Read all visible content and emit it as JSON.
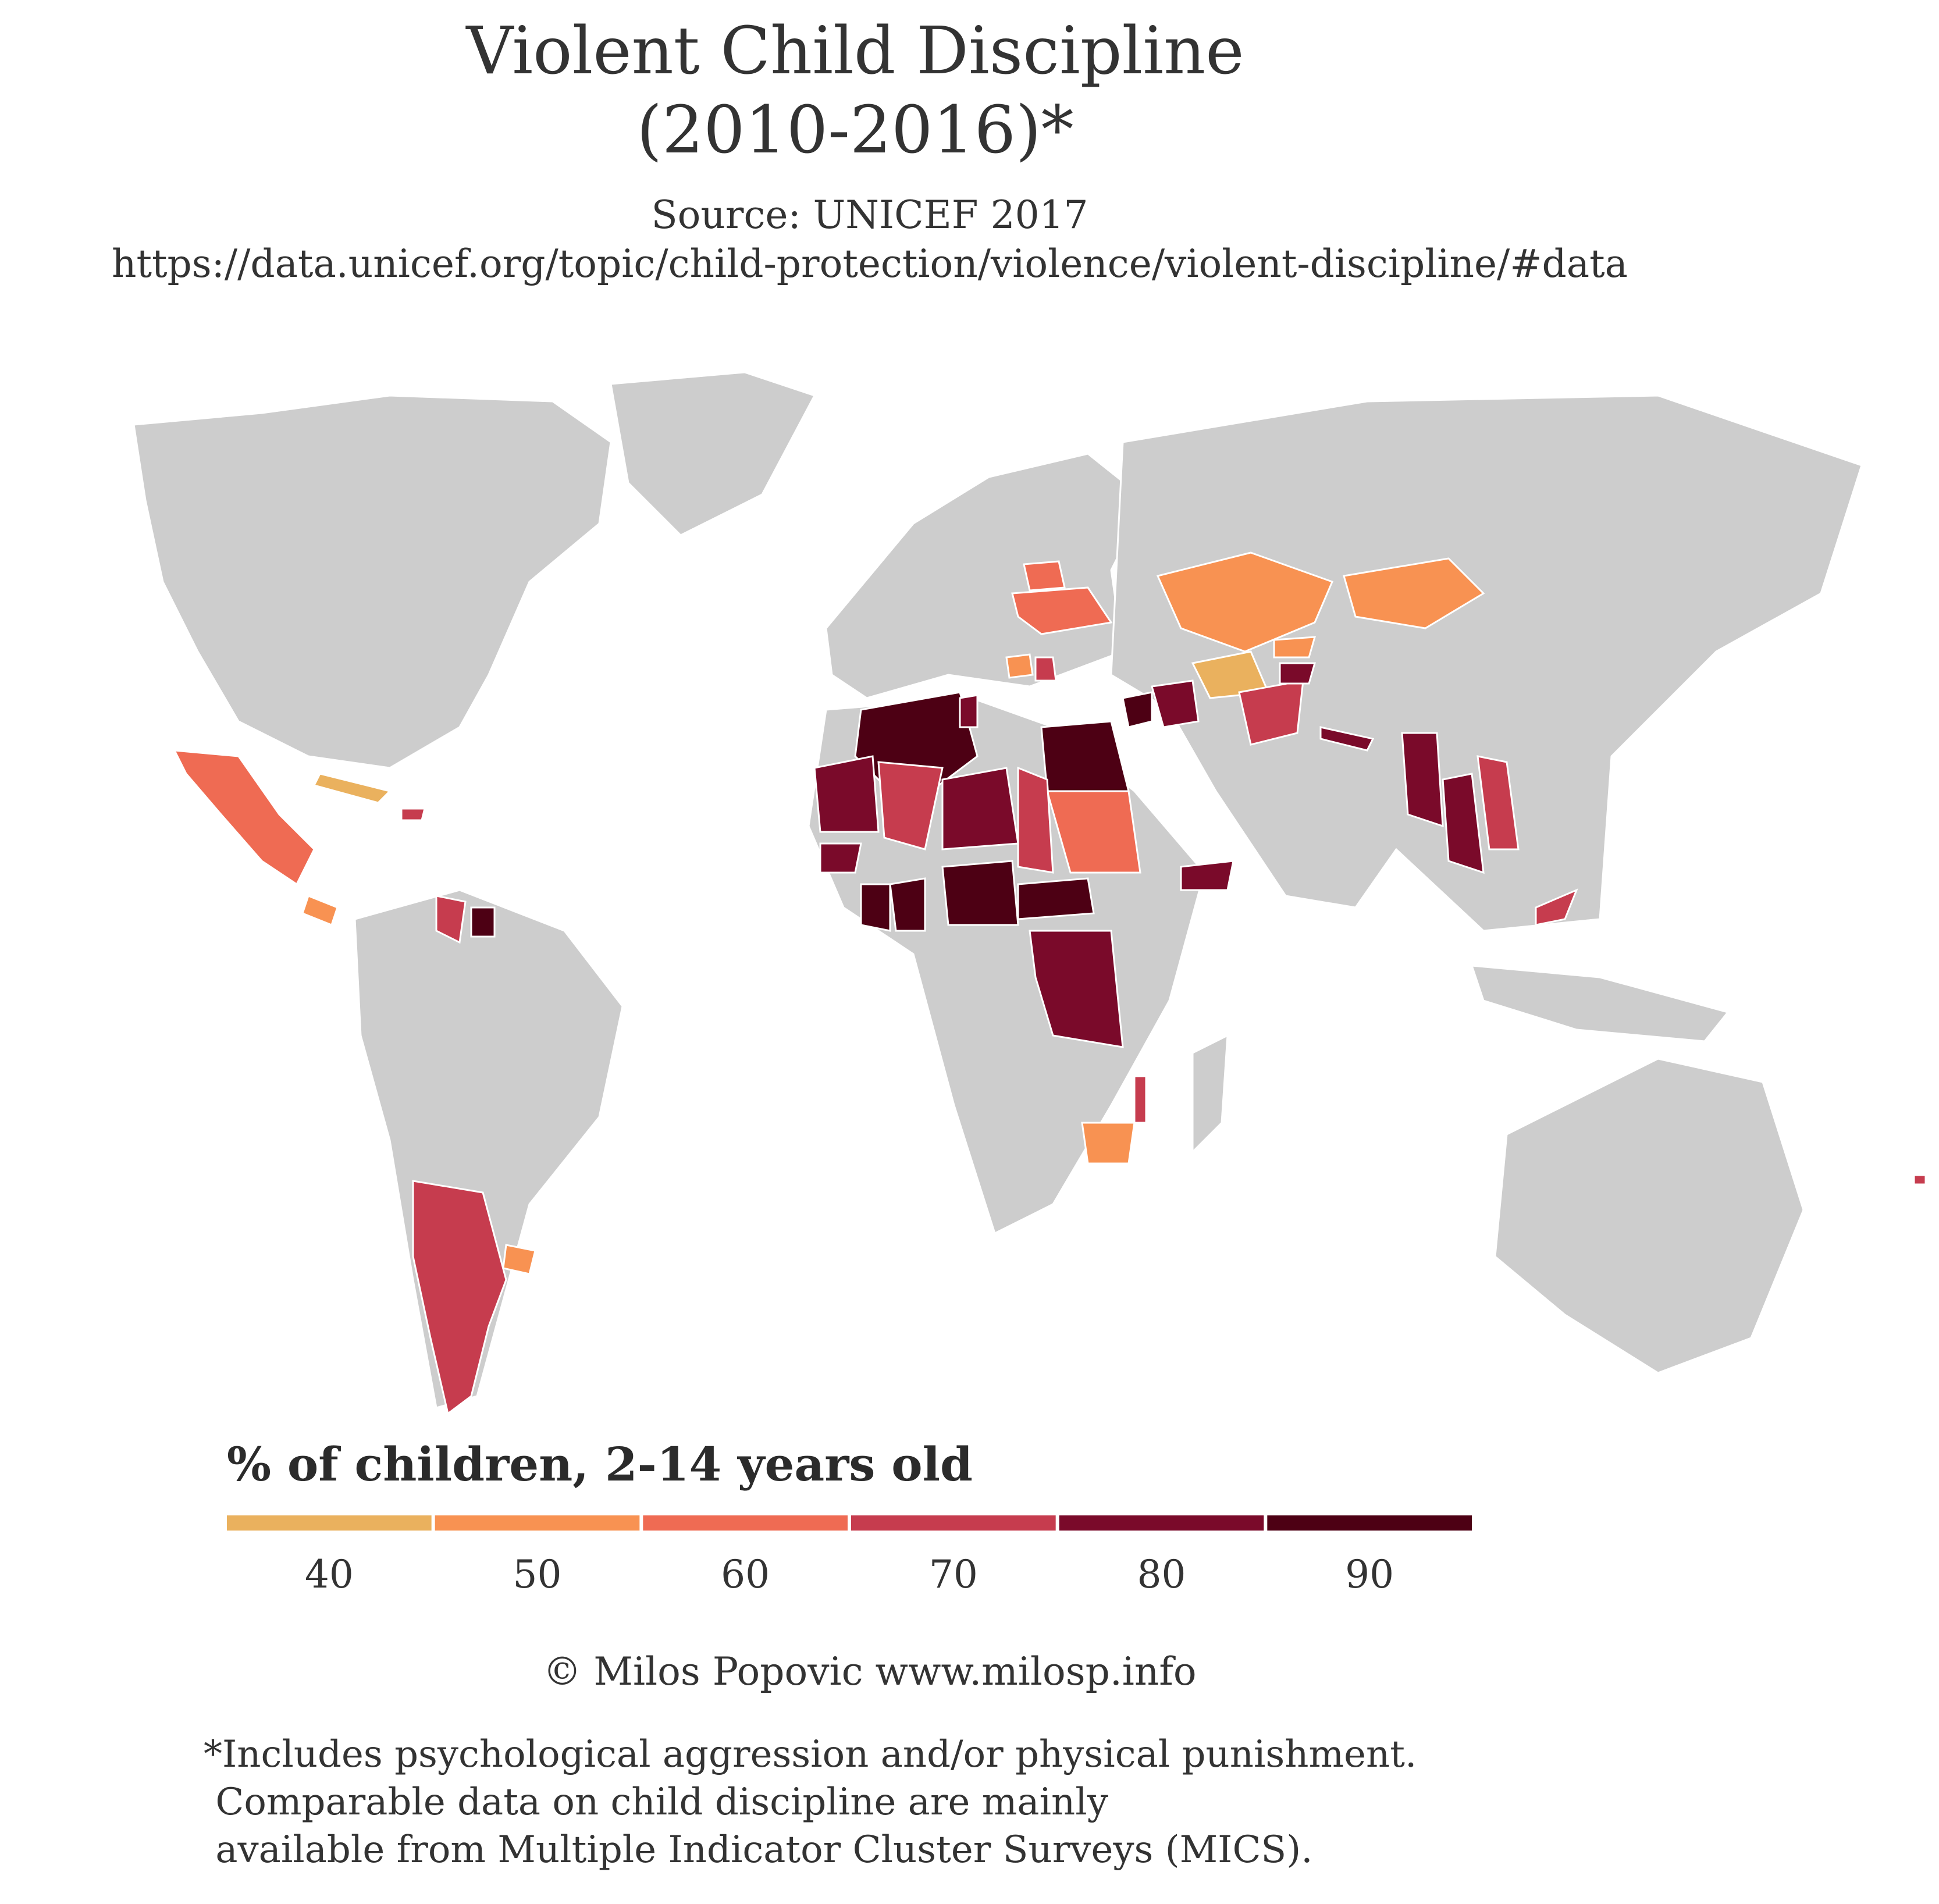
{
  "title_line1": "Violent Child Discipline",
  "title_line2": "(2010-2016)*",
  "source_line1": "Source: UNICEF 2017",
  "source_line2": "https://data.unicef.org/topic/child-protection/violence/violent-discipline/#data",
  "legend": {
    "title": "% of children, 2-14 years old",
    "bins": [
      {
        "label": "40",
        "color": "#EAB15E"
      },
      {
        "label": "50",
        "color": "#F89252"
      },
      {
        "label": "60",
        "color": "#EF6B53"
      },
      {
        "label": "70",
        "color": "#C63C4E"
      },
      {
        "label": "80",
        "color": "#7A0A2A"
      },
      {
        "label": "90",
        "color": "#4D0014"
      }
    ]
  },
  "colors": {
    "no_data": "#CDCDCD",
    "borders": "#FFFFFF",
    "text": "#333333"
  },
  "copyright": "© Milos Popovic www.milosp.info",
  "footnote": [
    "*Includes psychological aggression and/or physical punishment.",
    " Comparable data on child discipline are mainly",
    " available from Multiple Indicator Cluster Surveys (MICS)."
  ]
}
